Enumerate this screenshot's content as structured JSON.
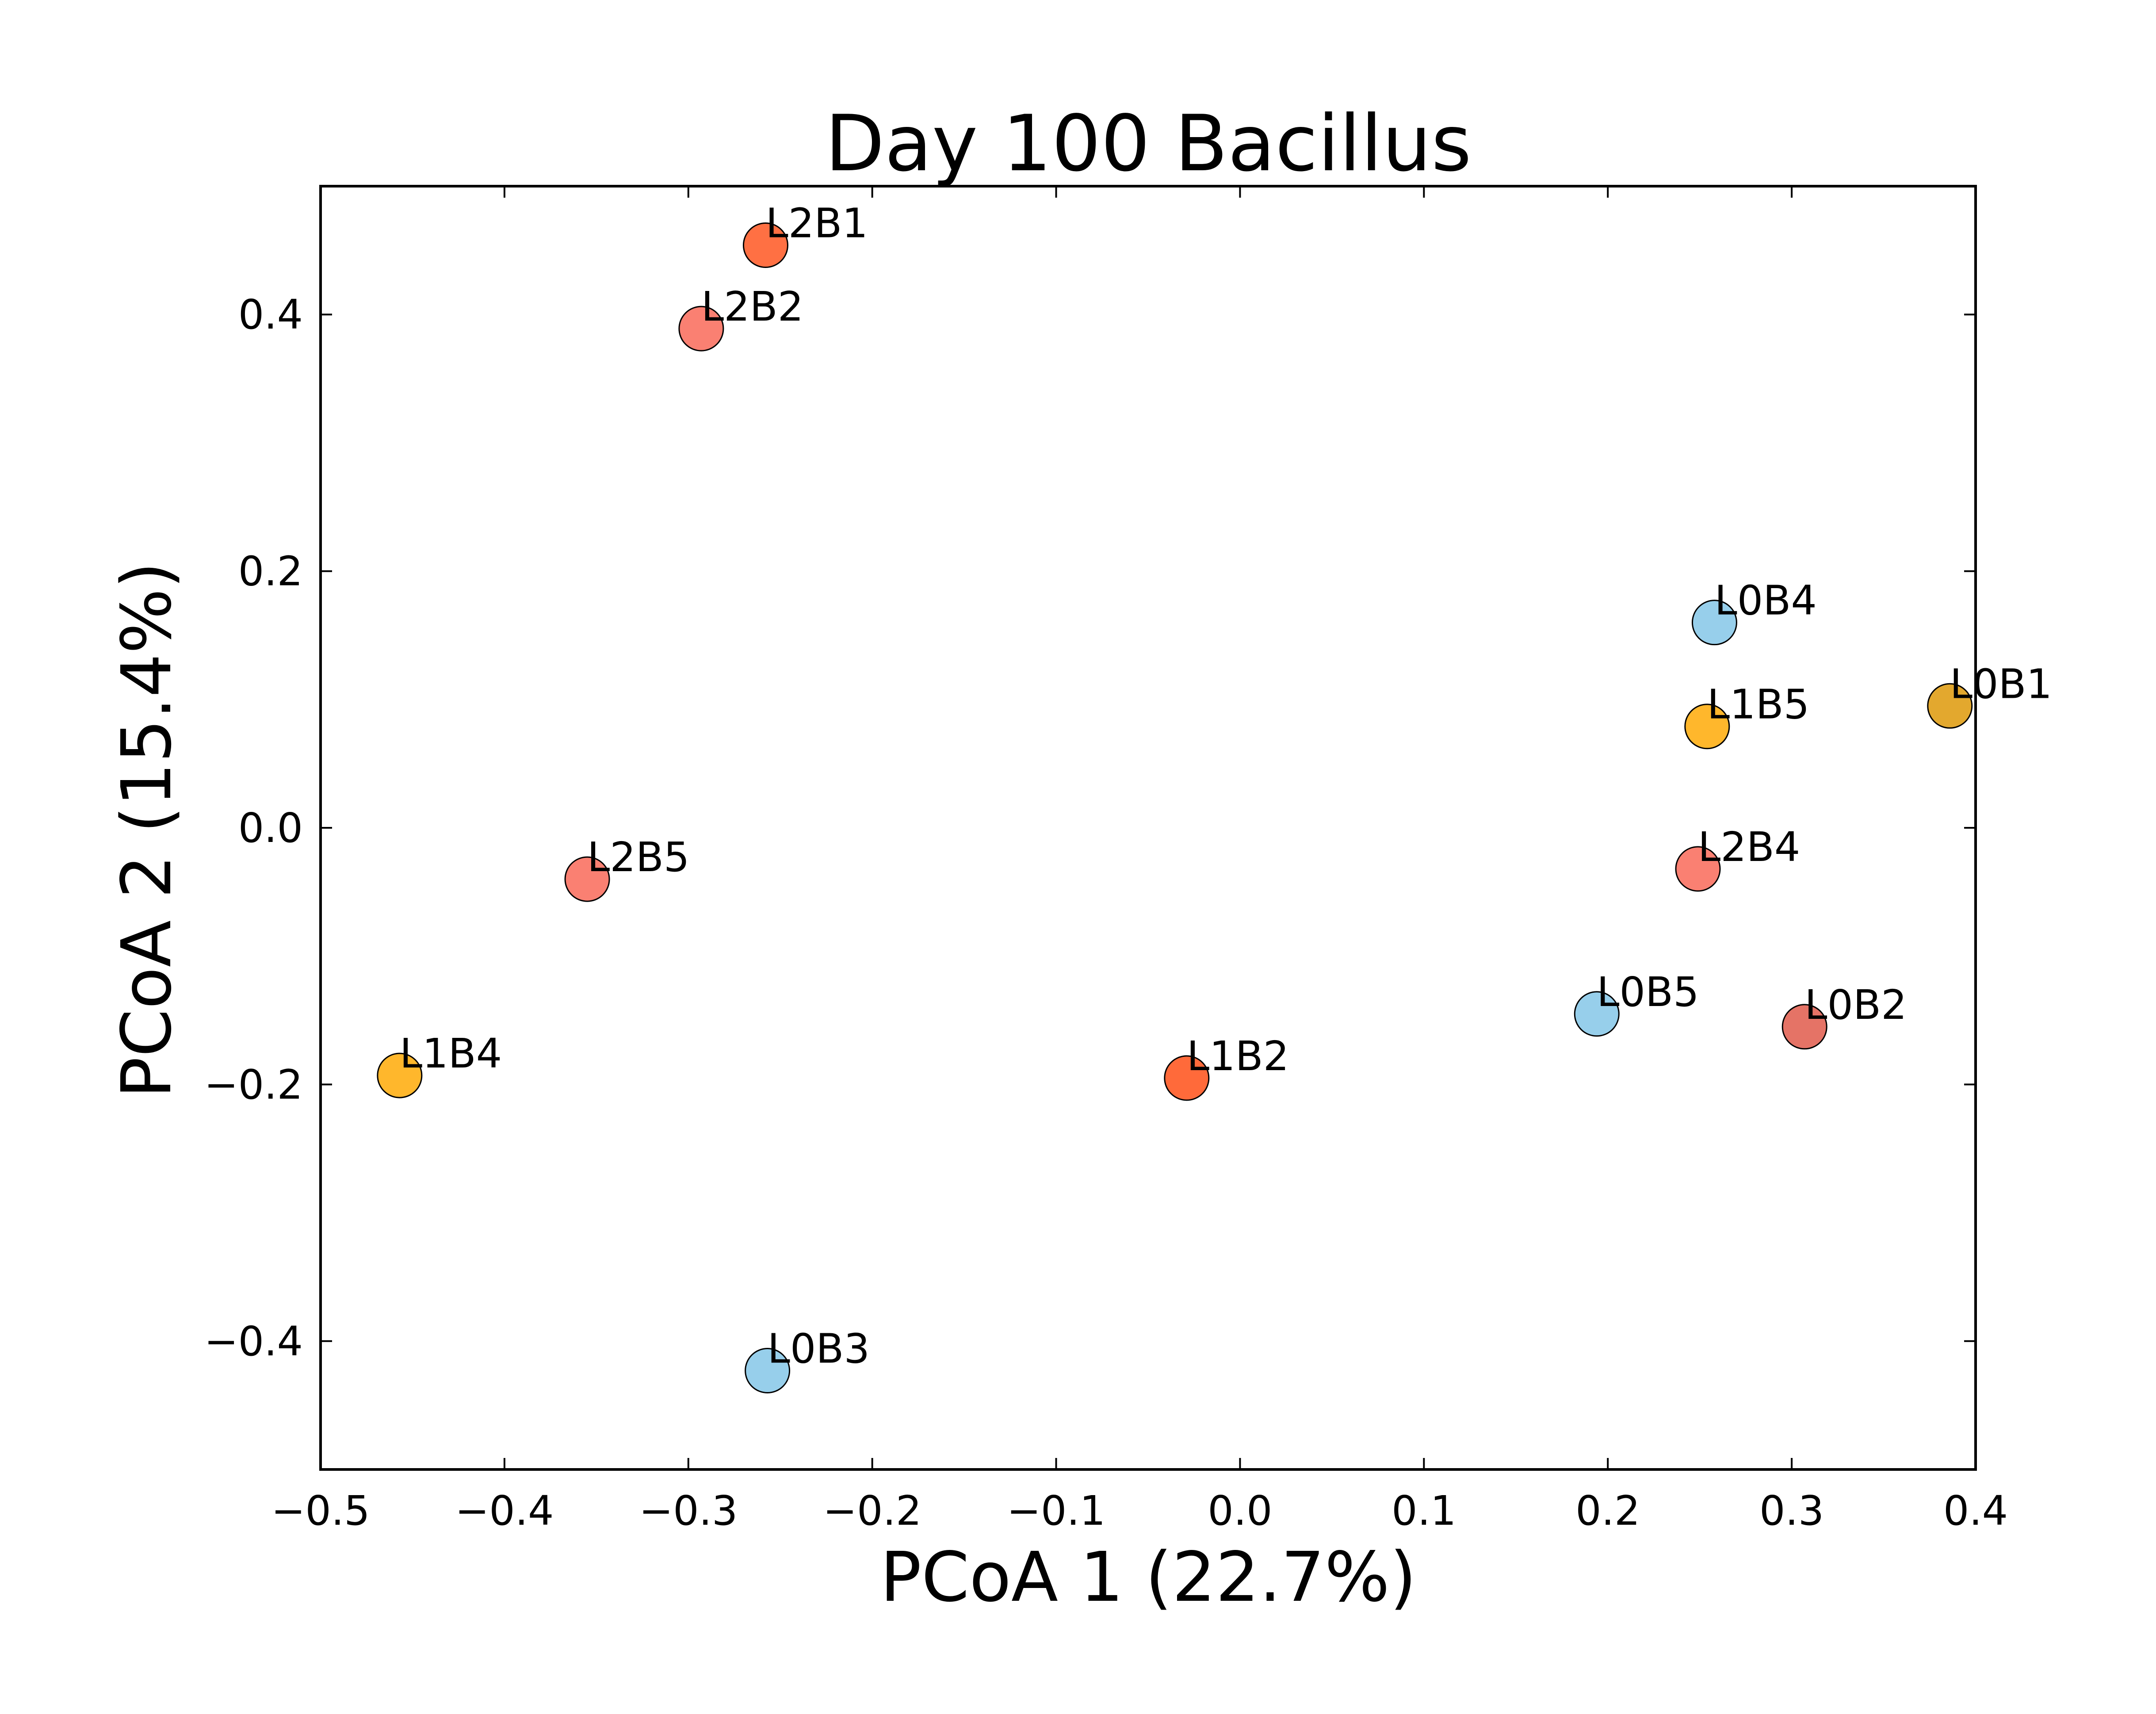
{
  "chart_data": {
    "type": "scatter",
    "title": "Day 100 Bacillus",
    "xlabel": "PCoA 1 (22.7%)",
    "ylabel": "PCoA 2 (15.4%)",
    "xlim": [
      -0.5,
      0.4
    ],
    "ylim": [
      -0.5,
      0.5
    ],
    "xticks": [
      -0.5,
      -0.4,
      -0.3,
      -0.2,
      -0.1,
      0.0,
      0.1,
      0.2,
      0.3,
      0.4
    ],
    "xtick_labels": [
      "−0.5",
      "−0.4",
      "−0.3",
      "−0.2",
      "−0.1",
      "0.0",
      "0.1",
      "0.2",
      "0.3",
      "0.4"
    ],
    "yticks": [
      -0.4,
      -0.2,
      0.0,
      0.2,
      0.4
    ],
    "ytick_labels": [
      "−0.4",
      "−0.2",
      "0.0",
      "0.2",
      "0.4"
    ],
    "grid": false,
    "points": [
      {
        "label": "L2B1",
        "x": -0.258,
        "y": 0.454,
        "color": "#ff7043"
      },
      {
        "label": "L2B2",
        "x": -0.293,
        "y": 0.389,
        "color": "#fa8072"
      },
      {
        "label": "L0B4",
        "x": 0.258,
        "y": 0.16,
        "color": "#97cfeb"
      },
      {
        "label": "L0B1",
        "x": 0.386,
        "y": 0.095,
        "color": "#e3a82e"
      },
      {
        "label": "L1B5",
        "x": 0.254,
        "y": 0.079,
        "color": "#ffb72c"
      },
      {
        "label": "L2B5",
        "x": -0.355,
        "y": -0.04,
        "color": "#fa8072"
      },
      {
        "label": "L2B4",
        "x": 0.249,
        "y": -0.032,
        "color": "#fa8072"
      },
      {
        "label": "L0B5",
        "x": 0.194,
        "y": -0.145,
        "color": "#97cfeb"
      },
      {
        "label": "L0B2",
        "x": 0.307,
        "y": -0.155,
        "color": "#e57366"
      },
      {
        "label": "L1B4",
        "x": -0.457,
        "y": -0.193,
        "color": "#ffb72c"
      },
      {
        "label": "L1B2",
        "x": -0.029,
        "y": -0.195,
        "color": "#ff6a3a"
      },
      {
        "label": "L0B3",
        "x": -0.257,
        "y": -0.423,
        "color": "#97cfeb"
      }
    ]
  }
}
